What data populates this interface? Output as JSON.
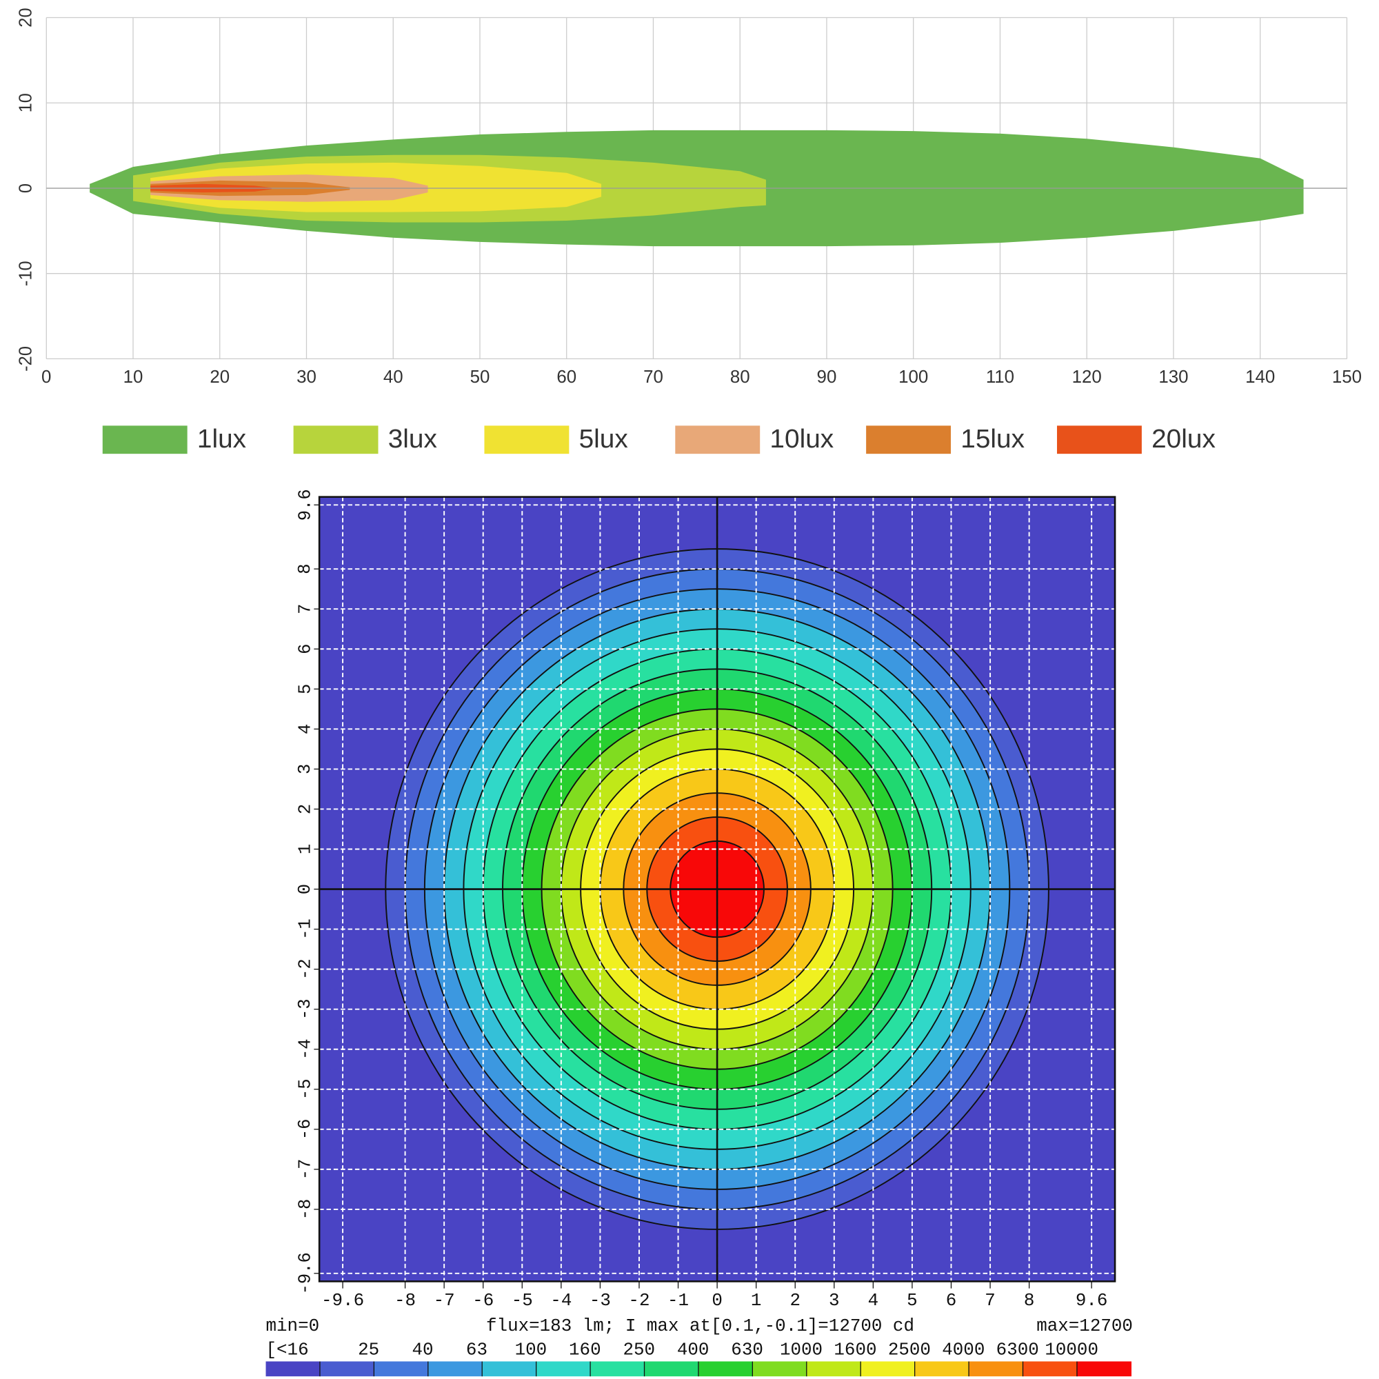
{
  "chart_data": [
    {
      "type": "isolux",
      "xlim": [
        0,
        150
      ],
      "ylim": [
        -20,
        20
      ],
      "xticks": [
        0,
        10,
        20,
        30,
        40,
        50,
        60,
        70,
        80,
        90,
        100,
        110,
        120,
        130,
        140,
        150
      ],
      "yticks": [
        -20,
        -10,
        0,
        10,
        20
      ],
      "grid": true,
      "series": [
        {
          "name": "1lux",
          "color": "#6ab650",
          "x": [
            5,
            10,
            20,
            30,
            40,
            50,
            60,
            70,
            80,
            90,
            100,
            110,
            120,
            130,
            140,
            145
          ],
          "values": [
            0.5,
            2.5,
            4,
            5,
            5.7,
            6.3,
            6.6,
            6.8,
            6.8,
            6.8,
            6.7,
            6.4,
            5.8,
            4.8,
            3.5,
            1
          ],
          "lower": [
            -0.5,
            -3,
            -4,
            -5,
            -5.8,
            -6.3,
            -6.6,
            -6.8,
            -6.8,
            -6.8,
            -6.7,
            -6.4,
            -5.8,
            -5,
            -3.8,
            -3
          ]
        },
        {
          "name": "3lux",
          "color": "#b7d43c",
          "x": [
            10,
            20,
            30,
            40,
            50,
            60,
            70,
            80,
            83
          ],
          "values": [
            1.5,
            3,
            3.7,
            3.9,
            3.9,
            3.6,
            3,
            2,
            1
          ],
          "lower": [
            -1.5,
            -3,
            -3.8,
            -4,
            -4,
            -3.8,
            -3.2,
            -2.2,
            -2
          ]
        },
        {
          "name": "5lux",
          "color": "#f0e232",
          "x": [
            12,
            20,
            30,
            40,
            50,
            60,
            64
          ],
          "values": [
            1.2,
            2.3,
            2.9,
            3,
            2.6,
            1.8,
            0.5
          ],
          "lower": [
            -1.2,
            -2.3,
            -2.8,
            -2.8,
            -2.7,
            -2.2,
            -1
          ]
        },
        {
          "name": "10lux",
          "color": "#e8a878",
          "x": [
            12,
            20,
            30,
            40,
            44
          ],
          "values": [
            0.8,
            1.4,
            1.6,
            1.2,
            0.3
          ],
          "lower": [
            -0.8,
            -1.4,
            -1.6,
            -1.4,
            -0.5
          ]
        },
        {
          "name": "15lux",
          "color": "#db7f2e",
          "x": [
            12,
            20,
            30,
            35
          ],
          "values": [
            0.5,
            0.9,
            0.7,
            0.1
          ],
          "lower": [
            -0.5,
            -0.9,
            -0.8,
            -0.2
          ]
        },
        {
          "name": "20lux",
          "color": "#e8521a",
          "x": [
            12,
            18,
            24,
            26
          ],
          "values": [
            0.3,
            0.5,
            0.3,
            0.05
          ],
          "lower": [
            -0.3,
            -0.5,
            -0.4,
            -0.1
          ]
        }
      ]
    },
    {
      "type": "heatmap",
      "xlim": [
        -10.2,
        10.2
      ],
      "ylim": [
        -9.8,
        9.8
      ],
      "xticks": [
        -9.6,
        -8,
        -7,
        -6,
        -5,
        -4,
        -3,
        -2,
        -1,
        0,
        1,
        2,
        3,
        4,
        5,
        6,
        7,
        8,
        9.6
      ],
      "yticks": [
        -9.6,
        -8,
        -7,
        -6,
        -5,
        -4,
        -3,
        -2,
        -1,
        0,
        1,
        2,
        3,
        4,
        5,
        6,
        7,
        8,
        9.6
      ],
      "grid": true,
      "annotations": [
        "min=0",
        "flux=183 lm; I max at[0.1,-0.1]=12700 cd",
        "max=12700"
      ],
      "levels": [
        {
          "value": 16,
          "label": "[<16"
        },
        25,
        40,
        63,
        100,
        160,
        250,
        400,
        630,
        1000,
        1600,
        2500,
        4000,
        6300,
        10000
      ],
      "radii": [
        8.5,
        8.0,
        7.5,
        7.0,
        6.5,
        6.0,
        5.5,
        5.0,
        4.5,
        4.0,
        3.5,
        3.0,
        2.4,
        1.8,
        1.2
      ],
      "colors": [
        "#4a44c4",
        "#4a5cd0",
        "#4478dc",
        "#3c98e0",
        "#34c0d8",
        "#30d8c8",
        "#28e0a0",
        "#20d870",
        "#28d030",
        "#80dc20",
        "#c0e818",
        "#f0f020",
        "#f8c818",
        "#f89010",
        "#f85010",
        "#f80808"
      ]
    }
  ]
}
